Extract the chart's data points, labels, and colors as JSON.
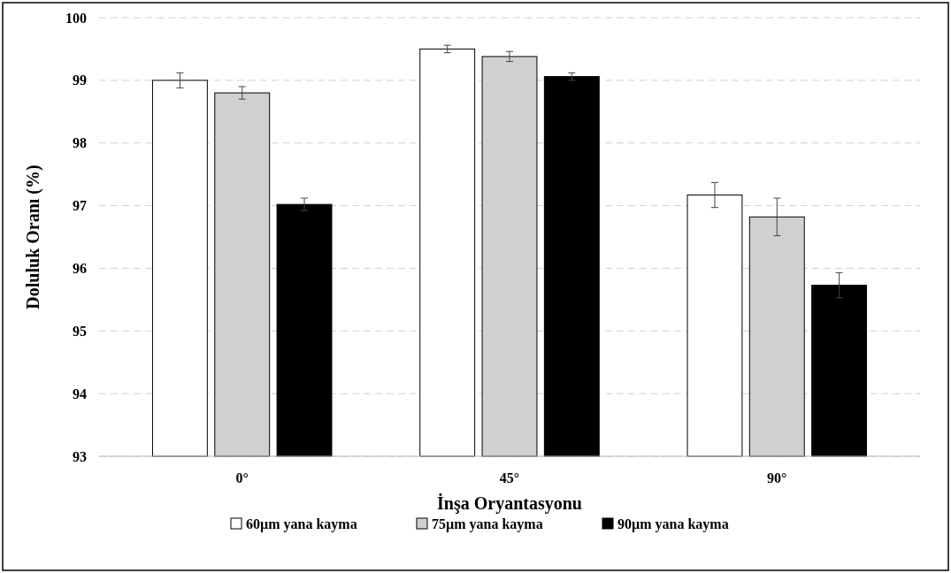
{
  "chart_data": {
    "type": "bar",
    "xlabel": "İnşa Oryantasyonu",
    "ylabel": "Doluluk Oranı (%)",
    "categories": [
      "0°",
      "45°",
      "90°"
    ],
    "series": [
      {
        "name": "60µm yana kayma",
        "color": "#ffffff",
        "values": [
          99.0,
          99.5,
          97.17
        ],
        "errors": [
          0.12,
          0.06,
          0.2
        ]
      },
      {
        "name": "75µm yana kayma",
        "color": "#d0d0d0",
        "values": [
          98.8,
          99.38,
          96.82
        ],
        "errors": [
          0.1,
          0.08,
          0.3
        ]
      },
      {
        "name": "90µm yana kayma",
        "color": "#000000",
        "values": [
          97.02,
          99.06,
          95.73
        ],
        "errors": [
          0.1,
          0.06,
          0.2
        ]
      }
    ],
    "ylim": [
      93,
      100
    ],
    "yticks": [
      93,
      94,
      95,
      96,
      97,
      98,
      99,
      100
    ],
    "grid": "y",
    "legend": "bottom"
  }
}
